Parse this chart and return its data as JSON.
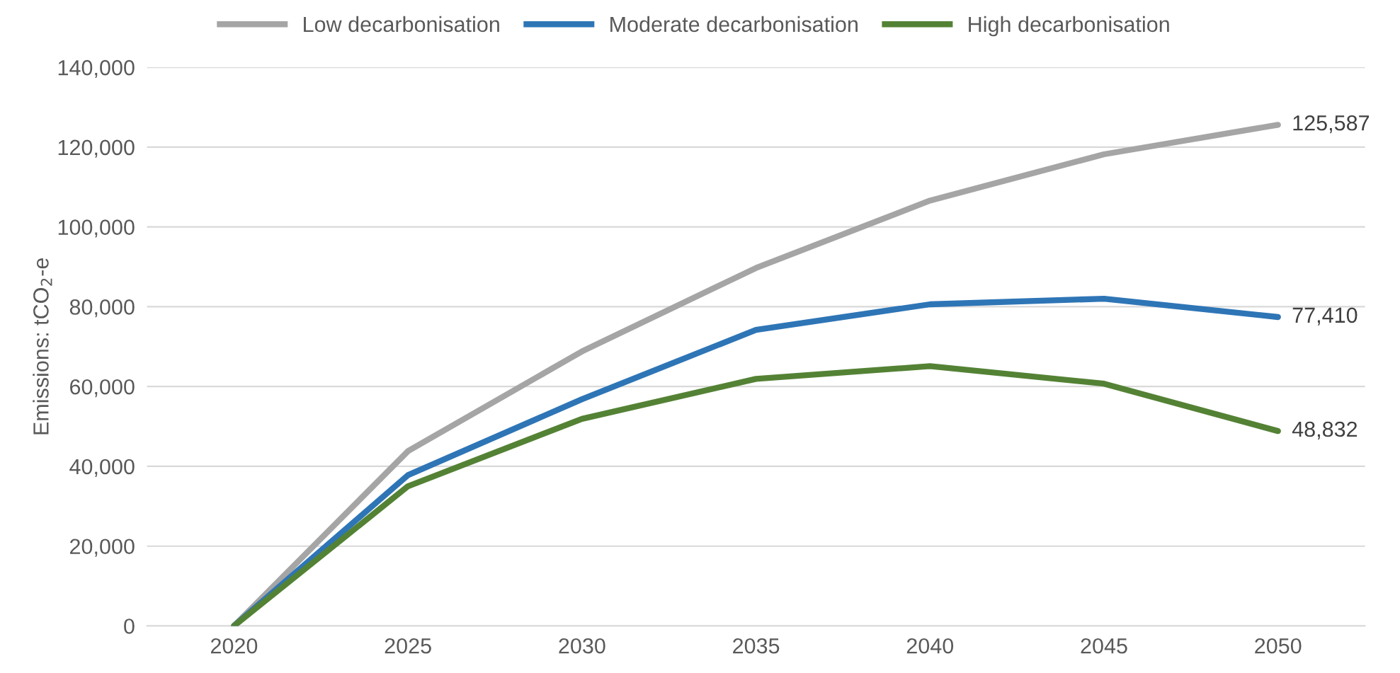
{
  "chart_data": {
    "type": "line",
    "ylabel": "Emissions: tCO$_{2}$-e",
    "categories": [
      "2020",
      "2025",
      "2030",
      "2035",
      "2040",
      "2045",
      "2050"
    ],
    "series": [
      {
        "name": "Low decarbonisation",
        "color": "#a5a5a5",
        "values": [
          0,
          43800,
          68800,
          89700,
          106600,
          118200,
          125587
        ],
        "value_labels": [
          null,
          null,
          null,
          null,
          null,
          null,
          "125,587"
        ]
      },
      {
        "name": "Moderate decarbonisation",
        "color": "#2e75b6",
        "values": [
          0,
          37800,
          56800,
          74200,
          80600,
          82000,
          77410
        ],
        "value_labels": [
          null,
          null,
          null,
          null,
          null,
          null,
          "77,410"
        ]
      },
      {
        "name": "High decarbonisation",
        "color": "#548235",
        "values": [
          0,
          35000,
          51900,
          61900,
          65100,
          60700,
          48832
        ],
        "value_labels": [
          null,
          null,
          null,
          null,
          null,
          null,
          "48,832"
        ]
      }
    ],
    "ylim": [
      0,
      140000
    ],
    "yticks": [
      {
        "value": 0,
        "label": "0"
      },
      {
        "value": 20000,
        "label": "20,000"
      },
      {
        "value": 40000,
        "label": "40,000"
      },
      {
        "value": 60000,
        "label": "60,000"
      },
      {
        "value": 80000,
        "label": "80,000"
      },
      {
        "value": 100000,
        "label": "100,000"
      },
      {
        "value": 120000,
        "label": "120,000"
      },
      {
        "value": 140000,
        "label": "140,000"
      }
    ],
    "grid": "y",
    "legend": "top"
  }
}
